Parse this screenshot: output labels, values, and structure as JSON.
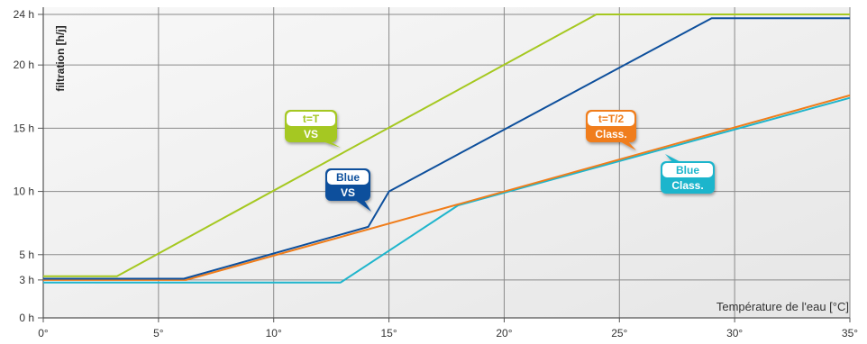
{
  "chart_data": {
    "type": "line",
    "ylabel": "filtration [h/j]",
    "xlabel": "Température de l'eau [°C]",
    "xlim": [
      0,
      35
    ],
    "ylim": [
      0,
      24
    ],
    "x_ticks": [
      0,
      5,
      10,
      15,
      20,
      25,
      30,
      35
    ],
    "x_tick_labels": [
      "0°",
      "5°",
      "10°",
      "15°",
      "20°",
      "25°",
      "30°",
      "35°"
    ],
    "y_ticks": [
      0,
      3,
      5,
      10,
      15,
      20,
      24
    ],
    "y_tick_labels": [
      "0 h",
      "3 h",
      "5 h",
      "10 h",
      "15 h",
      "20 h",
      "24 h"
    ],
    "grid": true,
    "series": [
      {
        "key": "tT_vs",
        "color": "#a5c820",
        "points": [
          [
            0,
            3.3
          ],
          [
            3.2,
            3.3
          ],
          [
            24,
            24
          ],
          [
            35,
            24
          ]
        ],
        "label_lines": [
          "t=T",
          "VS"
        ]
      },
      {
        "key": "blue_vs",
        "color": "#0d4f9c",
        "points": [
          [
            0,
            3.1
          ],
          [
            6.1,
            3.1
          ],
          [
            14.1,
            7.2
          ],
          [
            15,
            10
          ],
          [
            29,
            23.7
          ],
          [
            35,
            23.7
          ]
        ],
        "label_lines": [
          "Blue",
          "VS"
        ]
      },
      {
        "key": "tT2_class",
        "color": "#f07d1a",
        "points": [
          [
            0,
            3.0
          ],
          [
            6.2,
            3.0
          ],
          [
            35,
            17.6
          ]
        ],
        "label_lines": [
          "t=T/2",
          "Class."
        ]
      },
      {
        "key": "blue_class",
        "color": "#1fb5cc",
        "points": [
          [
            0,
            2.8
          ],
          [
            12.9,
            2.8
          ],
          [
            18,
            8.9
          ],
          [
            35,
            17.4
          ]
        ],
        "label_lines": [
          "Blue",
          "Class."
        ]
      }
    ]
  }
}
